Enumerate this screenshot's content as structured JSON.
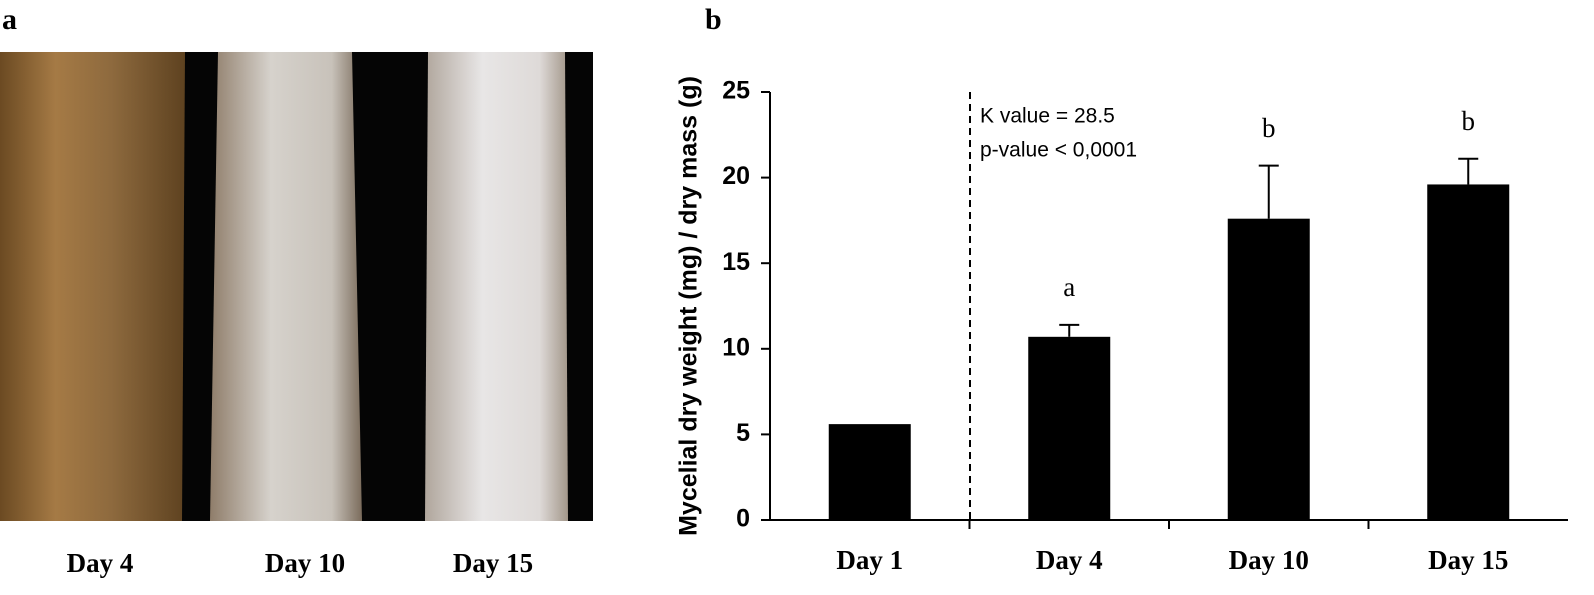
{
  "panel_a": {
    "label": "a",
    "captions": [
      "Day 4",
      "Day 10",
      "Day 15"
    ]
  },
  "chart_data": {
    "panel_label": "b",
    "type": "bar",
    "y_label": "Mycelial dry weight (mg) / dry mass (g)",
    "annotations": [
      "K value = 28.5",
      "p-value < 0,0001"
    ],
    "categories": [
      "Day 1",
      "Day 4",
      "Day 10",
      "Day 15"
    ],
    "values": [
      5.6,
      10.7,
      17.6,
      19.6
    ],
    "errors": [
      null,
      0.7,
      3.1,
      1.5
    ],
    "significance": [
      null,
      "a",
      "b",
      "b"
    ],
    "color": "#000000",
    "ylim": [
      0,
      25
    ],
    "yticks": [
      0,
      5,
      10,
      15,
      20,
      25
    ],
    "grid": false
  }
}
